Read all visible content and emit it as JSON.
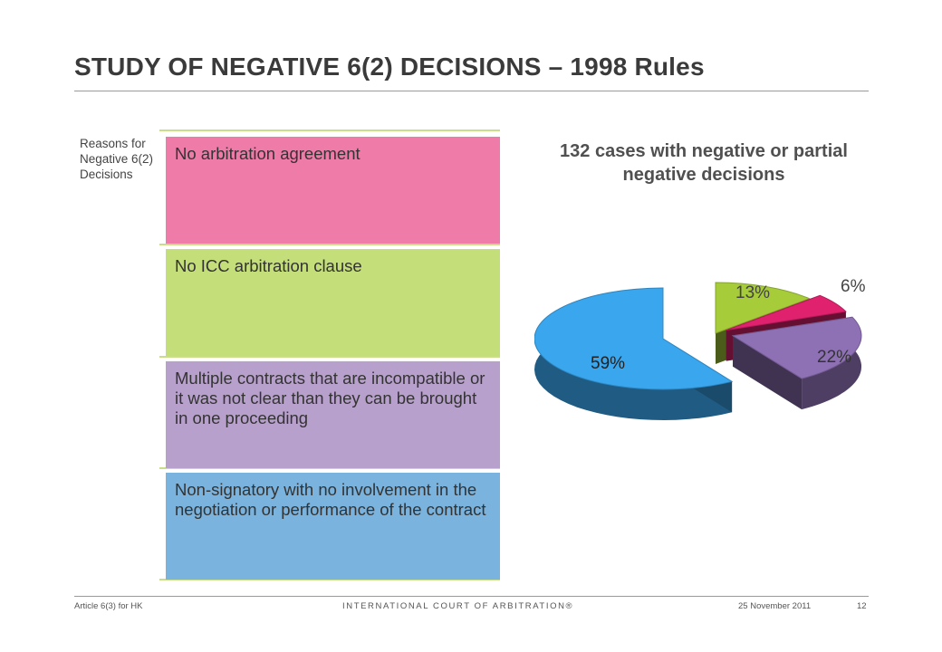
{
  "header": {
    "title": "STUDY OF NEGATIVE 6(2) DECISIONS – 1998 Rules"
  },
  "table": {
    "side_label": "Reasons for Negative 6(2) Decisions",
    "reasons": [
      "No arbitration agreement",
      "No ICC arbitration clause",
      "Multiple contracts that are incompatible or it was not clear than they can be brought in one proceeding",
      "Non-signatory with no involvement in the negotiation or performance of the contract"
    ],
    "colors": [
      "#ef7ba8",
      "#c4de7a",
      "#b8a0cc",
      "#7ab3dd"
    ]
  },
  "chart_data": {
    "type": "pie",
    "title": "132 cases with negative or partial negative decisions",
    "slices": [
      {
        "label": "13%",
        "value": 13,
        "color": "#a6cc3a"
      },
      {
        "label": "6%",
        "value": 6,
        "color": "#e0226e"
      },
      {
        "label": "22%",
        "value": 22,
        "color": "#8e70b4"
      },
      {
        "label": "59%",
        "value": 59,
        "color": "#3aa6ee"
      }
    ],
    "legend": "none"
  },
  "footer": {
    "left": "Article 6(3) for HK",
    "center": "INTERNATIONAL COURT OF ARBITRATION®",
    "date": "25 November 2011",
    "page": "12"
  }
}
